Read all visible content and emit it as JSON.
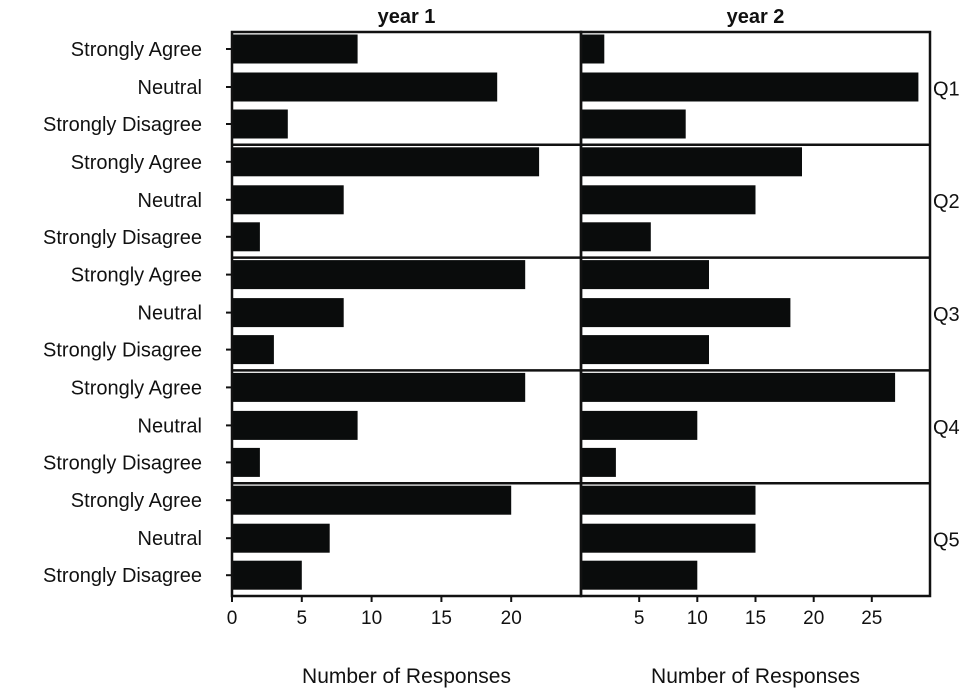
{
  "chart_data": {
    "type": "bar",
    "orientation": "horizontal",
    "bar_color": "#0a0c0c",
    "categories": [
      "Strongly Agree",
      "Neutral",
      "Strongly Disagree"
    ],
    "questions": [
      "Q1",
      "Q2",
      "Q3",
      "Q4",
      "Q5"
    ],
    "columns": [
      {
        "title": "year 1",
        "xlabel": "Number of Responses",
        "xlim": [
          0,
          25
        ],
        "xticks": [
          0,
          5,
          10,
          15,
          20
        ],
        "values": [
          [
            9,
            19,
            4
          ],
          [
            22,
            8,
            2
          ],
          [
            21,
            8,
            3
          ],
          [
            21,
            9,
            2
          ],
          [
            20,
            7,
            5
          ]
        ]
      },
      {
        "title": "year 2",
        "xlabel": "Number of Responses",
        "xlim": [
          0,
          30
        ],
        "xticks": [
          5,
          10,
          15,
          20,
          25
        ],
        "values": [
          [
            2,
            29,
            9
          ],
          [
            19,
            15,
            6
          ],
          [
            11,
            18,
            11
          ],
          [
            27,
            10,
            3
          ],
          [
            15,
            15,
            10
          ]
        ]
      }
    ]
  }
}
